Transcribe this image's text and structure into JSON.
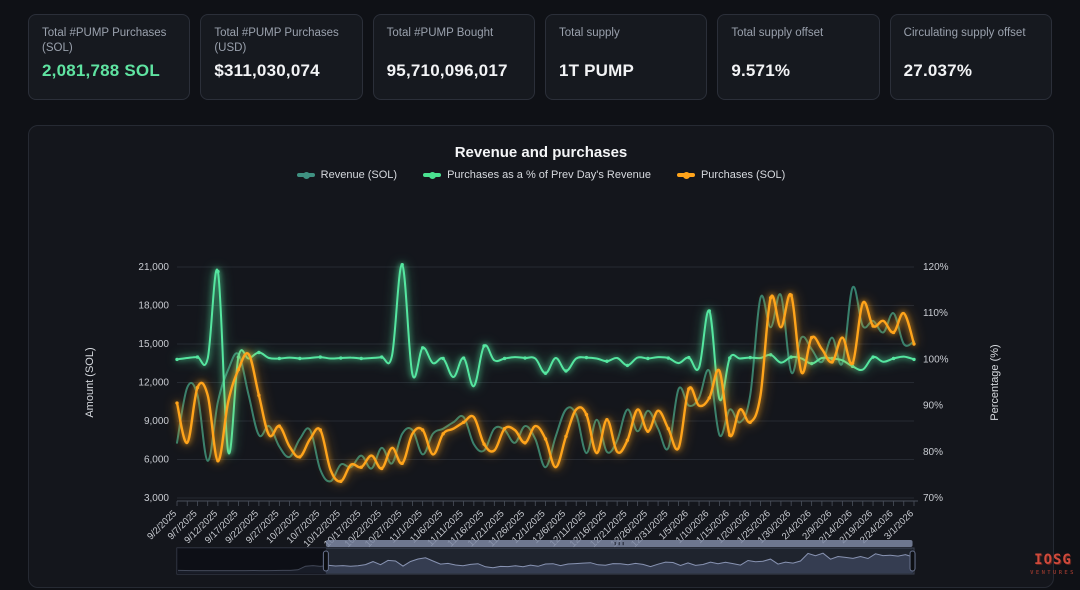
{
  "cards": [
    {
      "label": "Total #PUMP Purchases (SOL)",
      "value": "2,081,788 SOL",
      "accent": "#5fe3a1"
    },
    {
      "label": "Total #PUMP Purchases (USD)",
      "value": "$311,030,074"
    },
    {
      "label": "Total #PUMP Bought",
      "value": "95,710,096,017"
    },
    {
      "label": "Total supply",
      "value": "1T PUMP"
    },
    {
      "label": "Total supply offset",
      "value": "9.571%"
    },
    {
      "label": "Circulating supply offset",
      "value": "27.037%"
    }
  ],
  "chart": {
    "title": "Revenue and purchases",
    "legend": [
      {
        "label": "Revenue (SOL)",
        "color": "#3f9181"
      },
      {
        "label": "Purchases as a % of Prev Day's Revenue",
        "color": "#4ae290"
      },
      {
        "label": "Purchases (SOL)",
        "color": "#ffa41b"
      }
    ]
  },
  "logo": {
    "line1": "IOSG",
    "line2": "VENTURES"
  },
  "chart_data": {
    "type": "line",
    "title": "Revenue and purchases",
    "x_tick_labels": [
      "9/2/2025",
      "9/7/2025",
      "9/12/2025",
      "9/17/2025",
      "9/22/2025",
      "9/27/2025",
      "10/2/2025",
      "10/7/2025",
      "10/12/2025",
      "10/17/2025",
      "10/22/2025",
      "10/27/2025",
      "11/1/2025",
      "11/6/2025",
      "11/11/2025",
      "11/16/2025",
      "11/21/2025",
      "11/26/2025",
      "12/1/2025",
      "12/6/2025",
      "12/11/2025",
      "12/16/2025",
      "12/21/2025",
      "12/26/2025",
      "12/31/2025",
      "1/5/2026",
      "1/10/2026",
      "1/15/2026",
      "1/20/2026",
      "1/25/2026",
      "1/30/2026",
      "2/4/2026",
      "2/9/2026",
      "2/14/2026",
      "2/19/2026",
      "2/24/2026",
      "3/1/2026"
    ],
    "left_axis": {
      "label": "Amount (SOL)",
      "min": 3000,
      "max": 21000,
      "tick_values": [
        21000,
        18000,
        15000,
        12000,
        9000,
        6000,
        3000
      ],
      "tick_labels": [
        "21,000",
        "18,000",
        "15,000",
        "12,000",
        "9,000",
        "6,000",
        "3,000"
      ]
    },
    "right_axis": {
      "label": "Percentage (%)",
      "min": 70,
      "max": 120,
      "tick_values": [
        120,
        110,
        100,
        90,
        80,
        70
      ],
      "tick_labels": [
        "120%",
        "110%",
        "100%",
        "90%",
        "80%",
        "70%"
      ]
    },
    "grid": true,
    "legend_position": "top",
    "series": [
      {
        "name": "Revenue (SOL)",
        "axis": "left",
        "color": "#35806f",
        "width": 2,
        "glow": false,
        "markers": false,
        "values": [
          7300,
          11600,
          11000,
          5900,
          10500,
          13000,
          14200,
          11000,
          7900,
          8600,
          7000,
          6200,
          7600,
          8300,
          5200,
          4300,
          5600,
          5400,
          6300,
          5300,
          6900,
          5700,
          8000,
          8300,
          6400,
          8000,
          8400,
          8900,
          9300,
          7200,
          6700,
          8400,
          8300,
          7300,
          8600,
          7600,
          5400,
          7800,
          9900,
          9500,
          6500,
          9100,
          6600,
          7500,
          9900,
          8200,
          9800,
          8400,
          6900,
          11500,
          10200,
          10800,
          12900,
          7900,
          9900,
          8900,
          11000,
          18600,
          16300,
          18800,
          12800,
          15500,
          14600,
          13600,
          15500,
          13500,
          19400,
          16400,
          16800,
          15900,
          17400,
          15000,
          15200
        ]
      },
      {
        "name": "Purchases as a % of Prev Day's Revenue",
        "axis": "right",
        "color": "#55e6a0",
        "width": 2,
        "glow": true,
        "markers": true,
        "values": [
          100,
          100.3,
          100.5,
          100.2,
          119,
          80,
          100.5,
          100.2,
          101.5,
          100.3,
          100.2,
          100.4,
          100.2,
          100.3,
          100.5,
          100.2,
          100.3,
          100.4,
          100.2,
          100.3,
          100.5,
          100.8,
          120.5,
          96.8,
          102.5,
          99.2,
          100.2,
          96.2,
          100.3,
          94.2,
          102.9,
          99.8,
          100.2,
          100.5,
          100.3,
          100.2,
          97,
          100.3,
          97.5,
          100.2,
          100.4,
          100.2,
          99.6,
          100.3,
          98.7,
          100.4,
          100.2,
          100.5,
          100.3,
          99.2,
          100.4,
          98.2,
          110.5,
          91.4,
          100.3,
          100.2,
          100.4,
          100.3,
          101,
          99.3,
          100.5,
          100.2,
          99.1,
          100.3,
          100.2,
          99.8,
          98.5,
          97.8,
          100.5,
          99.5,
          100.2,
          100.6,
          100
        ]
      },
      {
        "name": "Purchases (SOL)",
        "axis": "left",
        "color": "#ffa41b",
        "width": 2.4,
        "glow": true,
        "markers": true,
        "values": [
          10400,
          7300,
          11600,
          11000,
          5900,
          10500,
          13000,
          14200,
          11000,
          7900,
          8600,
          7000,
          6200,
          7600,
          8300,
          5200,
          4300,
          5600,
          5400,
          6300,
          5300,
          6900,
          5700,
          8000,
          8300,
          6400,
          8000,
          8400,
          8900,
          9300,
          7200,
          6700,
          8400,
          8300,
          7300,
          8600,
          7600,
          5400,
          7800,
          9900,
          9500,
          6500,
          9100,
          6600,
          7500,
          9900,
          8200,
          9800,
          8400,
          6900,
          11500,
          10200,
          10800,
          12900,
          7900,
          9900,
          8900,
          11000,
          18600,
          16300,
          18800,
          12800,
          15500,
          14600,
          13600,
          15500,
          13500,
          18200,
          16400,
          16800,
          15900,
          17400,
          15000
        ]
      }
    ],
    "navigator": {
      "max": 20000,
      "selection": [
        0.202,
        0.998
      ],
      "values": [
        1600,
        1500,
        1400,
        1450,
        1400,
        1350,
        1400,
        1450,
        1400,
        1350,
        1500,
        1400,
        1450,
        1500,
        1600,
        1550,
        2200,
        5800,
        6400,
        5600,
        6800,
        6000,
        6400,
        5800,
        6200,
        7400,
        10400,
        7300,
        11600,
        11000,
        5900,
        10500,
        13000,
        14200,
        11000,
        7900,
        8600,
        7000,
        6200,
        7600,
        8300,
        5200,
        4300,
        5600,
        5400,
        6300,
        5300,
        6900,
        5700,
        8000,
        8300,
        6400,
        8000,
        8400,
        8900,
        9300,
        7200,
        6700,
        8400,
        8300,
        7300,
        8600,
        7600,
        5400,
        7800,
        9900,
        9500,
        6500,
        9100,
        6600,
        7500,
        9900,
        8200,
        9800,
        8400,
        6900,
        11500,
        10200,
        10800,
        12900,
        7900,
        9900,
        8900,
        11000,
        18600,
        16300,
        18800,
        12800,
        15500,
        14600,
        13600,
        15500,
        13500,
        18200,
        16400,
        16800,
        15900,
        17400,
        15000
      ]
    }
  }
}
